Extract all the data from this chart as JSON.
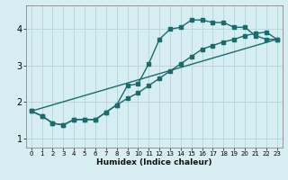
{
  "xlabel": "Humidex (Indice chaleur)",
  "background_color": "#d6eef2",
  "grid_color": "#b8d8de",
  "line_color": "#1a6b6b",
  "xlim": [
    -0.5,
    23.5
  ],
  "ylim": [
    0.75,
    4.65
  ],
  "yticks": [
    1,
    2,
    3,
    4
  ],
  "xticks": [
    0,
    1,
    2,
    3,
    4,
    5,
    6,
    7,
    8,
    9,
    10,
    11,
    12,
    13,
    14,
    15,
    16,
    17,
    18,
    19,
    20,
    21,
    22,
    23
  ],
  "line1_x": [
    0,
    1,
    2,
    3,
    4,
    5,
    6,
    7,
    8,
    9,
    10,
    11,
    12,
    13,
    14,
    15,
    16,
    17,
    18,
    19,
    20,
    21,
    22,
    23
  ],
  "line1_y": [
    1.75,
    1.62,
    1.42,
    1.37,
    1.52,
    1.52,
    1.52,
    1.72,
    1.92,
    2.45,
    2.5,
    3.05,
    3.72,
    4.0,
    4.05,
    4.25,
    4.25,
    4.18,
    4.18,
    4.05,
    4.05,
    3.82,
    3.72,
    3.72
  ],
  "line2_x": [
    0,
    1,
    2,
    3,
    4,
    5,
    6,
    7,
    8,
    9,
    10,
    11,
    12,
    13,
    14,
    15,
    16,
    17,
    18,
    19,
    20,
    21,
    22,
    23
  ],
  "line2_y": [
    1.75,
    1.62,
    1.42,
    1.37,
    1.52,
    1.52,
    1.52,
    1.72,
    1.92,
    2.1,
    2.25,
    2.45,
    2.65,
    2.85,
    3.05,
    3.25,
    3.45,
    3.55,
    3.65,
    3.72,
    3.82,
    3.88,
    3.92,
    3.72
  ],
  "line3_x": [
    0,
    23
  ],
  "line3_y": [
    1.75,
    3.72
  ]
}
